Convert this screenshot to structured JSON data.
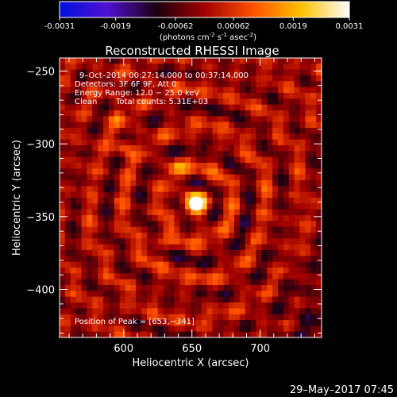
{
  "colorbar": {
    "tick_labels": [
      "-0.0031",
      "-0.0019",
      "-0.00062",
      "0.00062",
      "0.0019",
      "0.0031"
    ],
    "tick_values": [
      -0.0031,
      -0.0019,
      -0.00062,
      0.00062,
      0.0019,
      0.0031
    ],
    "range": [
      -0.0031,
      0.0031
    ],
    "units_prefix": "(photons cm",
    "units_exp1": "-2",
    "units_mid": " s",
    "units_exp2": "-1",
    "units_mid2": " asec",
    "units_exp3": "-2",
    "units_suffix": ")",
    "colors": [
      "#0010e0",
      "#5010d0",
      "#1a0010",
      "#a00000",
      "#ff5000",
      "#ffc000",
      "#ffffff"
    ]
  },
  "chart_data": {
    "type": "heatmap",
    "title": "Reconstructed RHESSI Image",
    "xlabel": "Heliocentric X (arcsec)",
    "ylabel": "Heliocentric Y (arcsec)",
    "xlim": [
      553,
      745
    ],
    "ylim": [
      -433,
      -241
    ],
    "xticks": [
      600,
      650,
      700
    ],
    "yticks": [
      -250,
      -300,
      -350,
      -400
    ],
    "xtick_labels": [
      "600",
      "650",
      "700"
    ],
    "ytick_labels": [
      "−250",
      "−300",
      "−350",
      "−400"
    ],
    "annotations": {
      "time_range": "9–Oct–2014 00:27:14.000 to 00:37:14.000",
      "detectors": "Detectors: 3F 6F 9F, Att 0",
      "energy": "Energy Range: 12.0 − 25.0 keV",
      "clean": "Clean",
      "counts": "Total counts: 5.31E+03",
      "peak": "Position of Peak = [653,−341]"
    },
    "peak": {
      "x": 653,
      "y": -341,
      "value": 0.0031
    },
    "secondary_sources": [
      {
        "x": 600,
        "y": -302,
        "value": 0.0015
      },
      {
        "x": 638,
        "y": -316,
        "value": 0.0012
      },
      {
        "x": 596,
        "y": -282,
        "value": 0.001
      },
      {
        "x": 625,
        "y": -369,
        "value": 0.0012
      }
    ]
  },
  "footer": {
    "date": "29–May–2017 07:45"
  }
}
